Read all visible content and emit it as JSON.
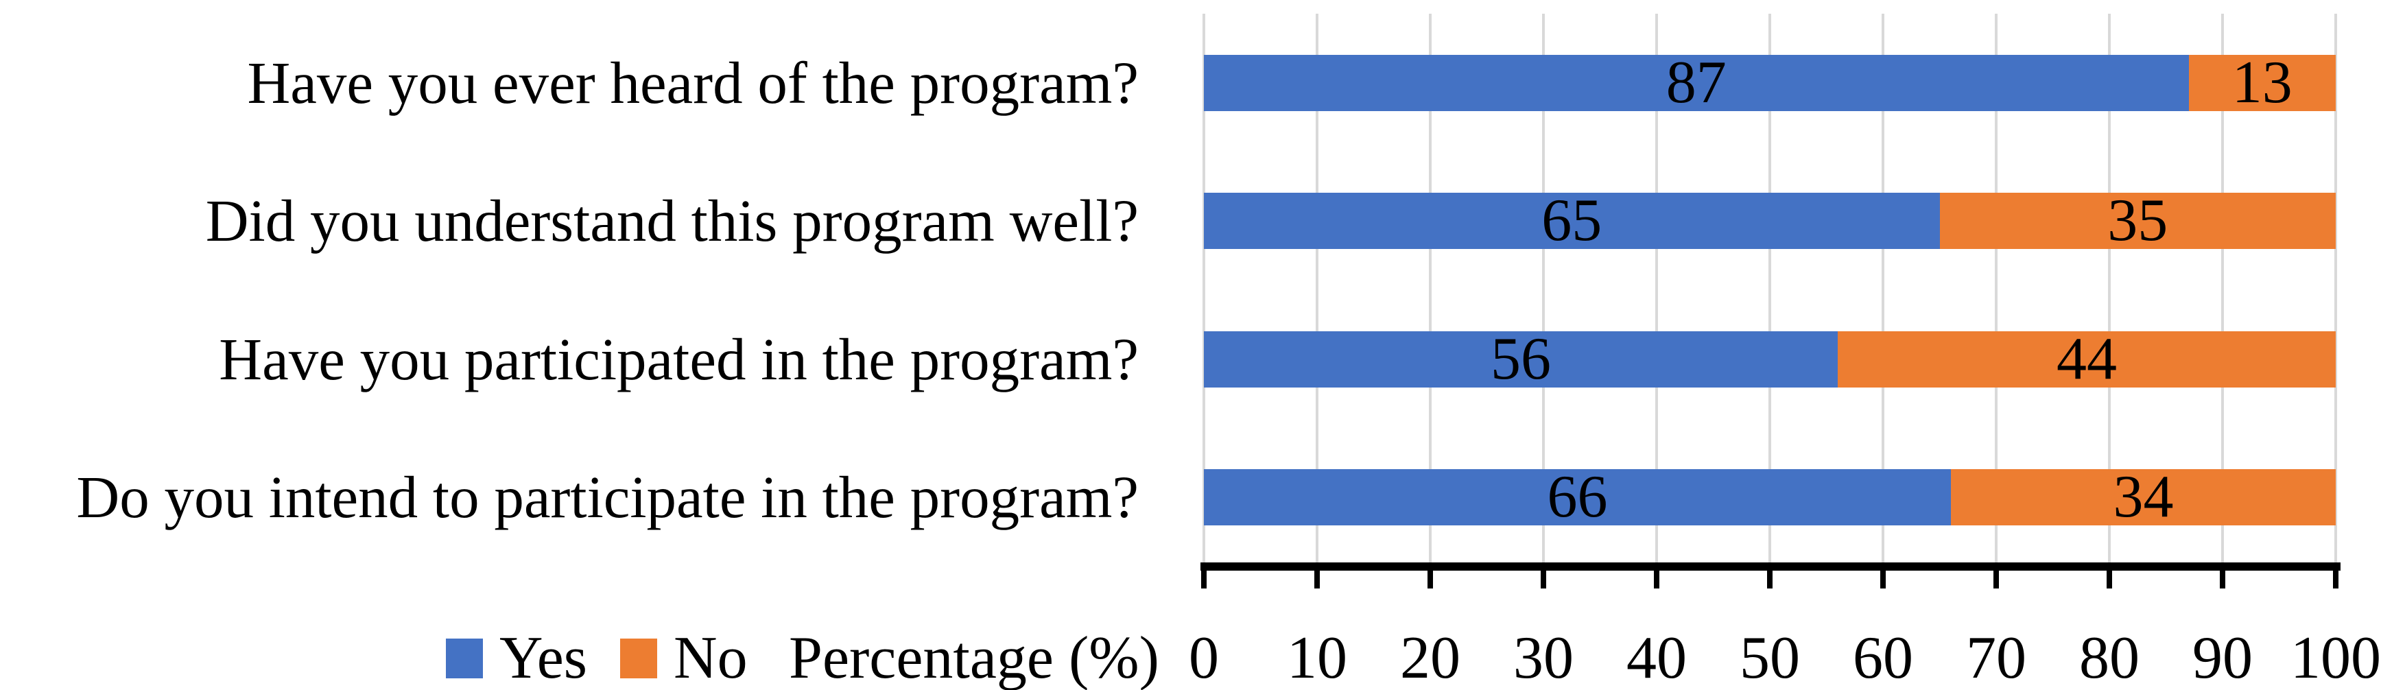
{
  "chart_data": {
    "type": "bar",
    "subtype": "horizontal-stacked",
    "categories": [
      "Have you ever heard of the program?",
      "Did you understand this program well?",
      "Have you participated in the program?",
      "Do you intend to participate in the program?"
    ],
    "series": [
      {
        "name": "Yes",
        "color": "#4472c4",
        "values": [
          87,
          65,
          56,
          66
        ]
      },
      {
        "name": "No",
        "color": "#ed7d31",
        "values": [
          13,
          35,
          44,
          34
        ]
      }
    ],
    "xlabel": "Percentage (%)",
    "ylabel": "",
    "title": "",
    "xlim": [
      0,
      100
    ],
    "xticks": [
      0,
      10,
      20,
      30,
      40,
      50,
      60,
      70,
      80,
      90,
      100
    ],
    "grid": true,
    "legend_position": "bottom-left",
    "bar_value_labels_shown": true
  },
  "colors": {
    "yes_bar": "#4472c4",
    "no_bar": "#ed7d31",
    "gridline": "#d9d9d9",
    "axis": "#000000",
    "text": "#000000",
    "background": "#ffffff"
  }
}
